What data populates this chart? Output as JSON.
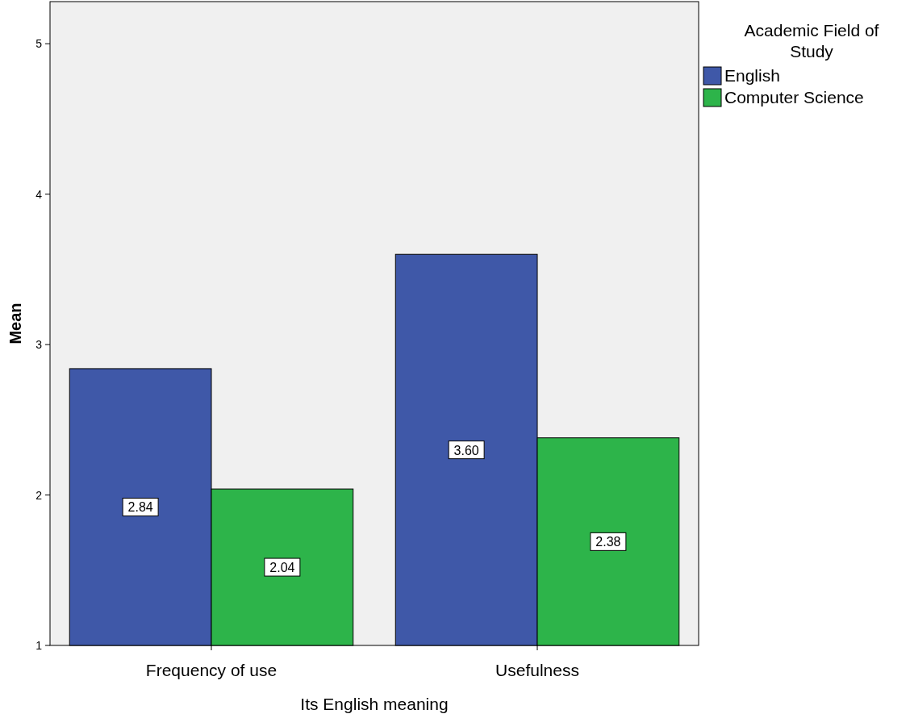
{
  "chart_data": {
    "type": "bar",
    "xlabel": "Its English meaning",
    "ylabel": "Mean",
    "legend_title": "Academic Field of Study",
    "categories": [
      "Frequency of use",
      "Usefulness"
    ],
    "series": [
      {
        "name": "English",
        "color": "#3f58a8",
        "values": [
          2.84,
          3.6
        ],
        "value_labels": [
          "2.84",
          "3.60"
        ]
      },
      {
        "name": "Computer Science",
        "color": "#2db44a",
        "values": [
          2.04,
          2.38
        ],
        "value_labels": [
          "2.04",
          "2.38"
        ]
      }
    ],
    "ylim": [
      1,
      5.28
    ],
    "yticks": [
      1,
      2,
      3,
      4,
      5
    ],
    "grid": false,
    "legend": "top right"
  }
}
